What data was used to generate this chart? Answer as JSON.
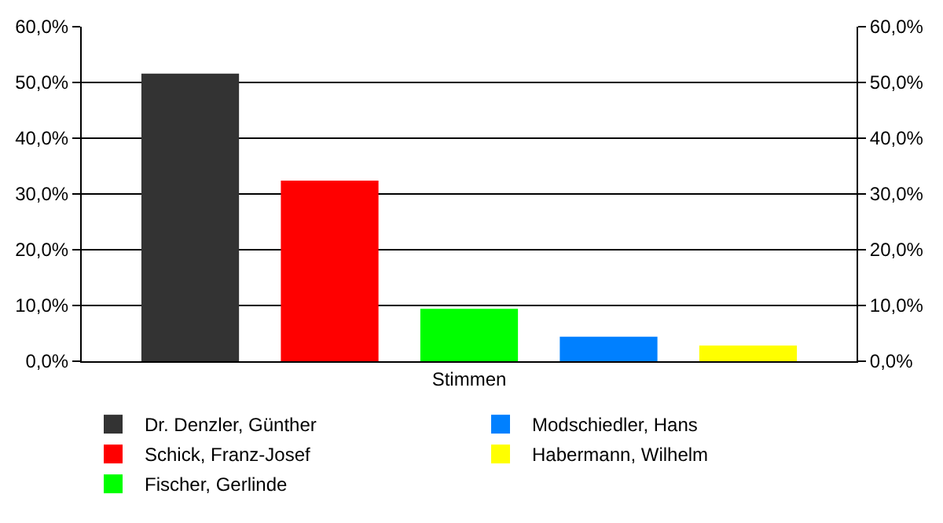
{
  "chart_data": {
    "type": "bar",
    "categories": [
      "Stimmen"
    ],
    "series": [
      {
        "name": "Dr. Denzler, Günther",
        "color": "#333333",
        "values": [
          51.6
        ]
      },
      {
        "name": "Schick, Franz-Josef",
        "color": "#ff0000",
        "values": [
          32.4
        ]
      },
      {
        "name": "Fischer, Gerlinde",
        "color": "#00ff00",
        "values": [
          9.4
        ]
      },
      {
        "name": "Modschiedler, Hans",
        "color": "#0080ff",
        "values": [
          4.4
        ]
      },
      {
        "name": "Habermann, Wilhelm",
        "color": "#ffff00",
        "values": [
          2.8
        ]
      }
    ],
    "ylim": [
      0,
      60
    ],
    "yticks": [
      {
        "value": 0,
        "label": "0,0%"
      },
      {
        "value": 10,
        "label": "10,0%"
      },
      {
        "value": 20,
        "label": "20,0%"
      },
      {
        "value": 30,
        "label": "30,0%"
      },
      {
        "value": 40,
        "label": "40,0%"
      },
      {
        "value": 50,
        "label": "50,0%"
      },
      {
        "value": 60,
        "label": "60,0%"
      }
    ],
    "grid": "y",
    "legend": "bottom"
  }
}
